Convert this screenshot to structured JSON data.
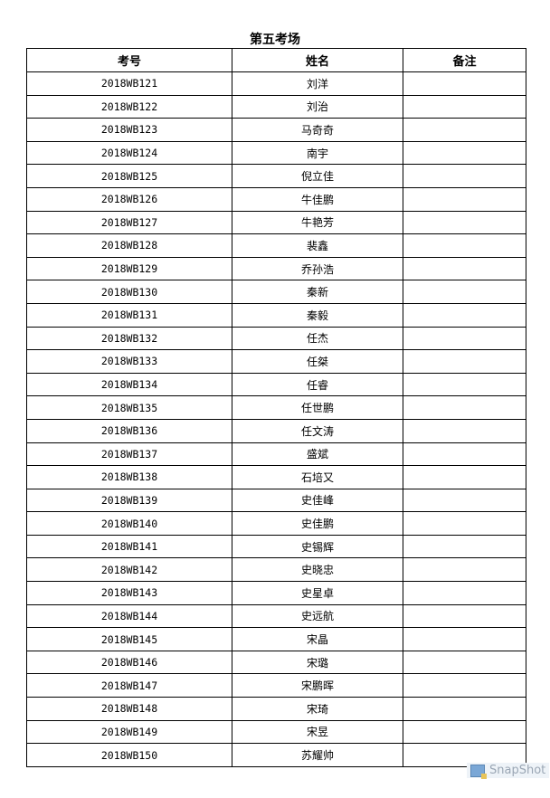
{
  "title": "第五考场",
  "table": {
    "headers": [
      "考号",
      "姓名",
      "备注"
    ],
    "rows": [
      [
        "2018WB121",
        "刘洋",
        ""
      ],
      [
        "2018WB122",
        "刘治",
        ""
      ],
      [
        "2018WB123",
        "马奇奇",
        ""
      ],
      [
        "2018WB124",
        "南宇",
        ""
      ],
      [
        "2018WB125",
        "倪立佳",
        ""
      ],
      [
        "2018WB126",
        "牛佳鹏",
        ""
      ],
      [
        "2018WB127",
        "牛艳芳",
        ""
      ],
      [
        "2018WB128",
        "裴鑫",
        ""
      ],
      [
        "2018WB129",
        "乔孙浩",
        ""
      ],
      [
        "2018WB130",
        "秦新",
        ""
      ],
      [
        "2018WB131",
        "秦毅",
        ""
      ],
      [
        "2018WB132",
        "任杰",
        ""
      ],
      [
        "2018WB133",
        "任桀",
        ""
      ],
      [
        "2018WB134",
        "任睿",
        ""
      ],
      [
        "2018WB135",
        "任世鹏",
        ""
      ],
      [
        "2018WB136",
        "任文涛",
        ""
      ],
      [
        "2018WB137",
        "盛斌",
        ""
      ],
      [
        "2018WB138",
        "石培又",
        ""
      ],
      [
        "2018WB139",
        "史佳峰",
        ""
      ],
      [
        "2018WB140",
        "史佳鹏",
        ""
      ],
      [
        "2018WB141",
        "史锡辉",
        ""
      ],
      [
        "2018WB142",
        "史晓忠",
        ""
      ],
      [
        "2018WB143",
        "史星卓",
        ""
      ],
      [
        "2018WB144",
        "史远航",
        ""
      ],
      [
        "2018WB145",
        "宋晶",
        ""
      ],
      [
        "2018WB146",
        "宋璐",
        ""
      ],
      [
        "2018WB147",
        "宋鹏晖",
        ""
      ],
      [
        "2018WB148",
        "宋琦",
        ""
      ],
      [
        "2018WB149",
        "宋昱",
        ""
      ],
      [
        "2018WB150",
        "苏耀帅",
        ""
      ]
    ]
  },
  "watermark": {
    "text": "SnapShot",
    "icon": "snapshot-icon"
  }
}
